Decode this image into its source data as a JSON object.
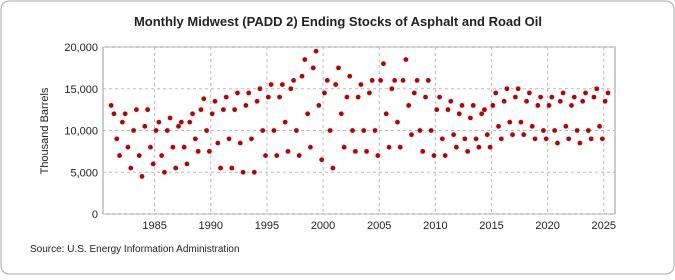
{
  "chart_data": {
    "type": "scatter",
    "title": "Monthly Midwest (PADD 2) Ending Stocks of Asphalt and Road Oil",
    "y_label": "Thousand Barrels",
    "source": "Source: U.S. Energy Information Administration",
    "xlim": [
      1980.4,
      2026
    ],
    "ylim": [
      0,
      20000
    ],
    "xticks": [
      1985,
      1990,
      1995,
      2000,
      2005,
      2010,
      2015,
      2020,
      2025
    ],
    "yticks": [
      0,
      {
        "value": 5000,
        "label": "5,000"
      },
      {
        "value": 10000,
        "label": "10,000"
      },
      {
        "value": 15000,
        "label": "15,000"
      },
      {
        "value": 20000,
        "label": "20,000"
      }
    ],
    "grid": true,
    "series": [
      {
        "name": "Ending Stocks",
        "color": "#c00000",
        "x": [
          1981.125,
          1981.375,
          1981.625,
          1981.875,
          1982.125,
          1982.375,
          1982.625,
          1982.875,
          1983.125,
          1983.375,
          1983.625,
          1983.875,
          1984.125,
          1984.375,
          1984.625,
          1984.875,
          1985.125,
          1985.375,
          1985.625,
          1985.875,
          1986.125,
          1986.375,
          1986.625,
          1986.875,
          1987.125,
          1987.375,
          1987.625,
          1987.875,
          1988.125,
          1988.375,
          1988.625,
          1988.875,
          1989.125,
          1989.375,
          1989.625,
          1989.875,
          1990.125,
          1990.375,
          1990.625,
          1990.875,
          1991.125,
          1991.375,
          1991.625,
          1991.875,
          1992.125,
          1992.375,
          1992.625,
          1992.875,
          1993.125,
          1993.375,
          1993.625,
          1993.875,
          1994.125,
          1994.375,
          1994.625,
          1994.875,
          1995.125,
          1995.375,
          1995.625,
          1995.875,
          1996.125,
          1996.375,
          1996.625,
          1996.875,
          1997.125,
          1997.375,
          1997.625,
          1997.875,
          1998.125,
          1998.375,
          1998.625,
          1998.875,
          1999.125,
          1999.375,
          1999.625,
          1999.875,
          2000.125,
          2000.375,
          2000.625,
          2000.875,
          2001.125,
          2001.375,
          2001.625,
          2001.875,
          2002.125,
          2002.375,
          2002.625,
          2002.875,
          2003.125,
          2003.375,
          2003.625,
          2003.875,
          2004.125,
          2004.375,
          2004.625,
          2004.875,
          2005.125,
          2005.375,
          2005.625,
          2005.875,
          2006.125,
          2006.375,
          2006.625,
          2006.875,
          2007.125,
          2007.375,
          2007.625,
          2007.875,
          2008.125,
          2008.375,
          2008.625,
          2008.875,
          2009.125,
          2009.375,
          2009.625,
          2009.875,
          2010.125,
          2010.375,
          2010.625,
          2010.875,
          2011.125,
          2011.375,
          2011.625,
          2011.875,
          2012.125,
          2012.375,
          2012.625,
          2012.875,
          2013.125,
          2013.375,
          2013.625,
          2013.875,
          2014.125,
          2014.375,
          2014.625,
          2014.875,
          2015.125,
          2015.375,
          2015.625,
          2015.875,
          2016.125,
          2016.375,
          2016.625,
          2016.875,
          2017.125,
          2017.375,
          2017.625,
          2017.875,
          2018.125,
          2018.375,
          2018.625,
          2018.875,
          2019.125,
          2019.375,
          2019.625,
          2019.875,
          2020.125,
          2020.375,
          2020.625,
          2020.875,
          2021.125,
          2021.375,
          2021.625,
          2021.875,
          2022.125,
          2022.375,
          2022.625,
          2022.875,
          2023.125,
          2023.375,
          2023.625,
          2023.875,
          2024.125,
          2024.375,
          2024.625,
          2024.875,
          2025.125,
          2025.375
        ],
        "values": [
          13000,
          12000,
          9000,
          7000,
          11000,
          12000,
          8000,
          5500,
          10000,
          12500,
          7000,
          4500,
          10500,
          12500,
          8000,
          6000,
          10000,
          11000,
          7000,
          5000,
          10000,
          11500,
          8000,
          5500,
          10500,
          11000,
          8000,
          6000,
          11000,
          12000,
          9000,
          7500,
          12500,
          13800,
          10000,
          7500,
          12000,
          13500,
          8500,
          5500,
          12500,
          14000,
          9000,
          5500,
          12500,
          14500,
          8500,
          5000,
          13000,
          14500,
          9000,
          5000,
          13500,
          15000,
          10000,
          7000,
          14000,
          15500,
          10000,
          7000,
          14000,
          15500,
          11000,
          7500,
          15000,
          16000,
          10000,
          7000,
          16500,
          18500,
          12000,
          8000,
          17500,
          19500,
          13000,
          6500,
          14500,
          16000,
          10000,
          5500,
          15500,
          17500,
          12000,
          8000,
          14000,
          16500,
          10000,
          7500,
          14000,
          15500,
          10000,
          7500,
          14500,
          16000,
          10000,
          7000,
          16000,
          18000,
          12000,
          8000,
          15000,
          16000,
          11000,
          8000,
          16000,
          18500,
          13000,
          9500,
          14500,
          16000,
          10000,
          7500,
          14000,
          16000,
          10000,
          7000,
          12500,
          14000,
          9000,
          7000,
          12500,
          13500,
          9500,
          8000,
          12000,
          13000,
          9000,
          7500,
          11500,
          13000,
          9000,
          8000,
          12000,
          12500,
          9500,
          8000,
          13000,
          14500,
          10500,
          9000,
          13500,
          15000,
          11000,
          9500,
          14000,
          15000,
          11000,
          9500,
          13500,
          14500,
          10500,
          9000,
          13000,
          14000,
          10000,
          9000,
          13000,
          14000,
          10000,
          8500,
          13500,
          14500,
          10500,
          9000,
          13000,
          14000,
          10000,
          8500,
          13500,
          14500,
          10000,
          9000,
          14000,
          15000,
          10500,
          9000,
          13500,
          14500
        ]
      }
    ]
  }
}
